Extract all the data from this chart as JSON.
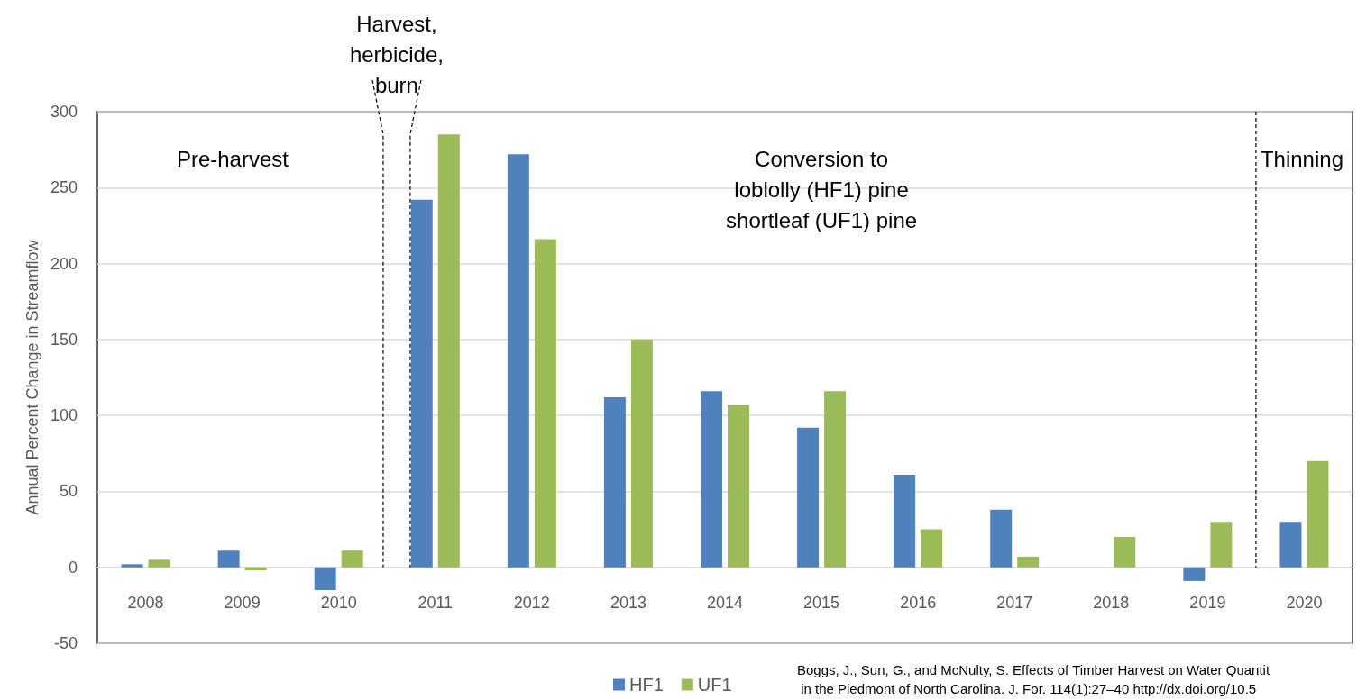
{
  "chart_data": {
    "type": "bar",
    "ylabel": "Annual Percent Change in Streamflow",
    "categories": [
      "2008",
      "2009",
      "2010",
      "2011",
      "2012",
      "2013",
      "2014",
      "2015",
      "2016",
      "2017",
      "2018",
      "2019",
      "2020"
    ],
    "series": [
      {
        "name": "HF1",
        "color": "#4f81bd",
        "values": [
          2,
          11,
          -15,
          242,
          272,
          112,
          116,
          92,
          61,
          38,
          0,
          -9,
          30
        ]
      },
      {
        "name": "UF1",
        "color": "#9bbb59",
        "values": [
          5,
          -2,
          11,
          285,
          216,
          150,
          107,
          116,
          25,
          7,
          20,
          30,
          70
        ]
      }
    ],
    "ylim": [
      -50,
      300
    ],
    "yticks": [
      -50,
      0,
      50,
      100,
      150,
      200,
      250,
      300
    ],
    "grid": "y",
    "legend": "bottom",
    "ref_lines": [
      {
        "axis": "x",
        "value": "2010",
        "label": "Harvest,\nherbicide,\nburn",
        "line_style": "dashed"
      },
      {
        "axis": "x",
        "value": "2011",
        "label": null,
        "line_style": "dashed"
      },
      {
        "axis": "x",
        "value": "2020",
        "label": "Thinning",
        "line_style": "dashed"
      }
    ],
    "annotations": [
      "Pre-harvest",
      "Conversion to\nloblolly (HF1) pine\nshortleaf (UF1) pine",
      "Boggs, J., Sun, G., and McNulty, S. Effects of Timber Harvest on Water Quantit\n in the Piedmont of North Carolina. J. For. 114(1):27–40 http://dx.doi.org/10.5"
    ]
  }
}
